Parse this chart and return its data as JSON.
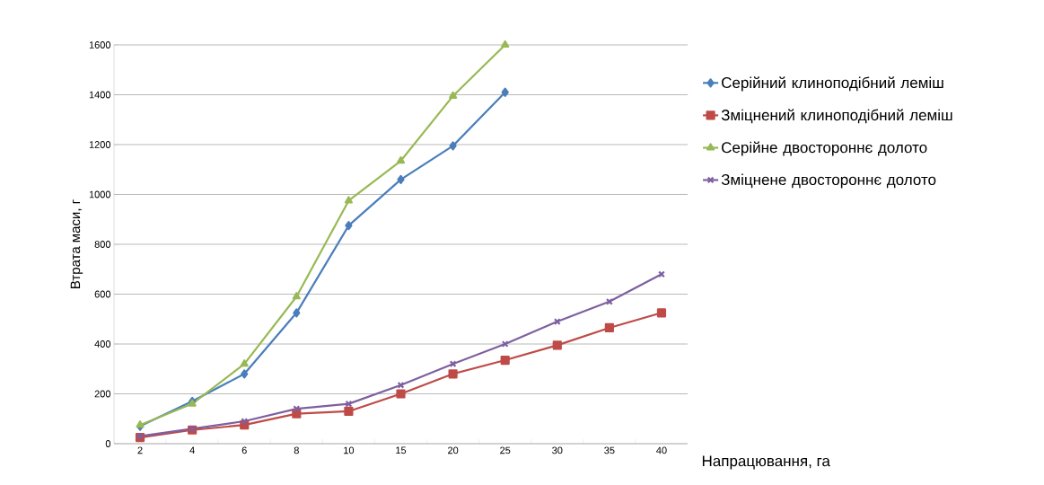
{
  "chart_data": {
    "type": "line",
    "xlabel": "Напрацювання, га",
    "ylabel": "Втрата маси, г",
    "categories": [
      "2",
      "4",
      "6",
      "8",
      "10",
      "15",
      "20",
      "25",
      "30",
      "35",
      "40"
    ],
    "ylim": [
      0,
      1600
    ],
    "yticks": [
      0,
      200,
      400,
      600,
      800,
      1000,
      1200,
      1400,
      1600
    ],
    "grid": "y",
    "legend": "right",
    "series": [
      {
        "name": "Серійний клиноподібний леміш",
        "color": "#4a7ebb",
        "marker": "diamond",
        "values": [
          70,
          170,
          280,
          525,
          875,
          1060,
          1195,
          1410,
          null,
          null,
          null
        ]
      },
      {
        "name": "Зміцнений клиноподібний леміш",
        "color": "#be4b48",
        "marker": "square",
        "values": [
          25,
          55,
          75,
          120,
          130,
          200,
          280,
          335,
          395,
          465,
          525
        ]
      },
      {
        "name": "Серійне двостороннє долото",
        "color": "#98b954",
        "marker": "triangle",
        "values": [
          75,
          160,
          320,
          590,
          975,
          1135,
          1395,
          1600,
          null,
          null,
          null
        ]
      },
      {
        "name": "Зміцнене двостороннє долото",
        "color": "#7d60a0",
        "marker": "cross",
        "values": [
          30,
          60,
          90,
          140,
          160,
          235,
          320,
          400,
          490,
          570,
          680
        ]
      }
    ]
  }
}
